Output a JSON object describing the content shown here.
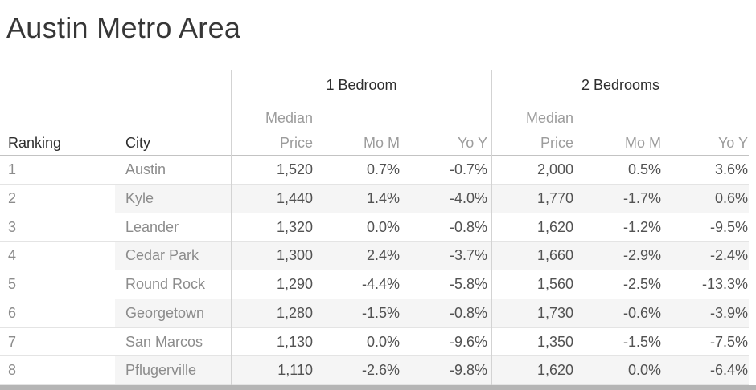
{
  "title": "Austin Metro Area",
  "chart_data": {
    "type": "table",
    "title": "Austin Metro Area",
    "column_groups": [
      {
        "label": "1 Bedroom",
        "columns": [
          "Median Price",
          "Mo M",
          "Yo Y"
        ]
      },
      {
        "label": "2 Bedrooms",
        "columns": [
          "Median Price",
          "Mo M",
          "Yo Y"
        ]
      }
    ],
    "headers": {
      "ranking": "Ranking",
      "city": "City",
      "median_line1": "Median",
      "median_line2": "Price",
      "mom": "Mo M",
      "yoy": "Yo Y"
    },
    "rows": [
      {
        "ranking": "1",
        "city": "Austin",
        "br1_price": "1,520",
        "br1_mom": "0.7%",
        "br1_yoy": "-0.7%",
        "br2_price": "2,000",
        "br2_mom": "0.5%",
        "br2_yoy": "3.6%"
      },
      {
        "ranking": "2",
        "city": "Kyle",
        "br1_price": "1,440",
        "br1_mom": "1.4%",
        "br1_yoy": "-4.0%",
        "br2_price": "1,770",
        "br2_mom": "-1.7%",
        "br2_yoy": "0.6%"
      },
      {
        "ranking": "3",
        "city": "Leander",
        "br1_price": "1,320",
        "br1_mom": "0.0%",
        "br1_yoy": "-0.8%",
        "br2_price": "1,620",
        "br2_mom": "-1.2%",
        "br2_yoy": "-9.5%"
      },
      {
        "ranking": "4",
        "city": "Cedar Park",
        "br1_price": "1,300",
        "br1_mom": "2.4%",
        "br1_yoy": "-3.7%",
        "br2_price": "1,660",
        "br2_mom": "-2.9%",
        "br2_yoy": "-2.4%"
      },
      {
        "ranking": "5",
        "city": "Round Rock",
        "br1_price": "1,290",
        "br1_mom": "-4.4%",
        "br1_yoy": "-5.8%",
        "br2_price": "1,560",
        "br2_mom": "-2.5%",
        "br2_yoy": "-13.3%"
      },
      {
        "ranking": "6",
        "city": "Georgetown",
        "br1_price": "1,280",
        "br1_mom": "-1.5%",
        "br1_yoy": "-0.8%",
        "br2_price": "1,730",
        "br2_mom": "-0.6%",
        "br2_yoy": "-3.9%"
      },
      {
        "ranking": "7",
        "city": "San Marcos",
        "br1_price": "1,130",
        "br1_mom": "0.0%",
        "br1_yoy": "-9.6%",
        "br2_price": "1,350",
        "br2_mom": "-1.5%",
        "br2_yoy": "-7.5%"
      },
      {
        "ranking": "8",
        "city": "Pflugerville",
        "br1_price": "1,110",
        "br1_mom": "-2.6%",
        "br1_yoy": "-9.8%",
        "br2_price": "1,620",
        "br2_mom": "0.0%",
        "br2_yoy": "-6.4%"
      }
    ]
  },
  "colors": {
    "title_text": "#363636",
    "header_text": "#2d2d2d",
    "muted_header_text": "#9c9c9c",
    "dimension_text": "#8c8c8c",
    "measure_text": "#525252",
    "banded_row": "#f5f5f5",
    "row_divider": "#e4e4e4",
    "header_divider": "#c3c3c3",
    "group_divider": "#d3d3d3",
    "scrollbar": "#b5b5b5"
  }
}
